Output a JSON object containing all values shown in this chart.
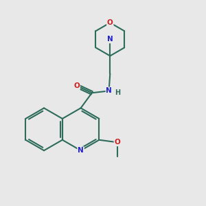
{
  "bg_color": "#e8e8e8",
  "bond_color": "#2d6b5a",
  "N_color": "#2020cc",
  "O_color": "#cc2020",
  "C_color": "#2d6b5a",
  "line_width": 1.5,
  "figsize": [
    3.0,
    3.0
  ],
  "dpi": 100,
  "xlim": [
    0,
    10
  ],
  "ylim": [
    0,
    10
  ]
}
